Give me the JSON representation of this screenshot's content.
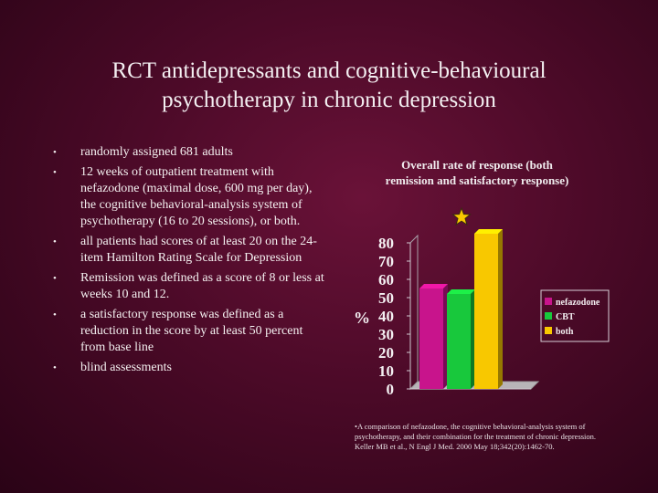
{
  "slide": {
    "title_lines": [
      "RCT antidepressants and cognitive-behavioural",
      "psychotherapy in chronic depression"
    ],
    "bullets": [
      "randomly assigned 681 adults",
      "12 weeks of outpatient treatment with nefazodone (maximal dose, 600 mg per day), the cognitive behavioral-analysis system of psychotherapy (16 to 20 sessions), or both.",
      "all patients had scores of at least 20 on the 24-item Hamilton Rating Scale for Depression",
      "Remission was defined as a score of 8 or less at weeks 10 and 12.",
      "a satisfactory response was defined as a reduction in the score by at least 50 percent from base line",
      "blind assessments"
    ],
    "bullet_glyph": "•",
    "footnote": "•A comparison of nefazodone, the cognitive behavioral-analysis system of psychotherapy, and their combination for the treatment of chronic depression. Keller MB et al., N Engl J Med. 2000 May 18;342(20):1462-70."
  },
  "chart_data": {
    "type": "bar",
    "title_lines": [
      "Overall rate of response (both",
      "remission and satisfactory response)"
    ],
    "ylabel": "%",
    "ylim": [
      0,
      80
    ],
    "yticks": [
      0,
      10,
      20,
      30,
      40,
      50,
      60,
      70,
      80
    ],
    "series": [
      {
        "name": "nefazodone",
        "values": [
          55
        ],
        "color": "#c8148c"
      },
      {
        "name": "CBT",
        "values": [
          52
        ],
        "color": "#18c83c"
      },
      {
        "name": "both",
        "values": [
          85
        ],
        "color": "#f8c800"
      }
    ],
    "star_marker": "both",
    "star_color": "#f8c800",
    "grid": false,
    "legend_position": "right"
  }
}
